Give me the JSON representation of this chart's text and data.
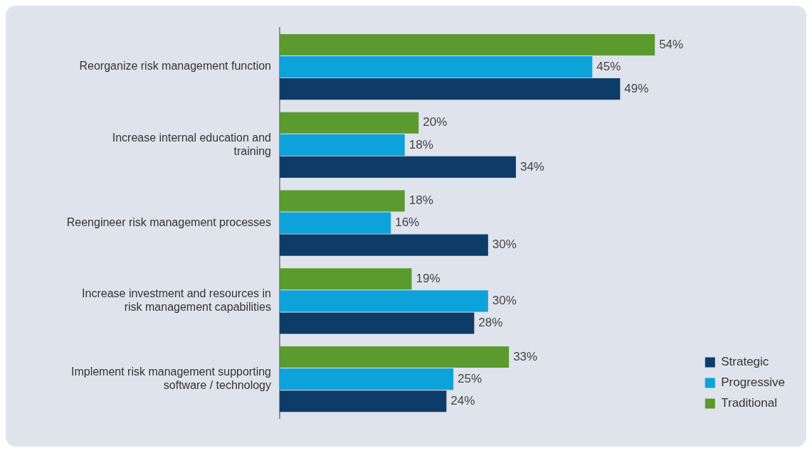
{
  "chart_data": {
    "type": "bar",
    "orientation": "horizontal",
    "categories": [
      "Reorganize risk management function",
      "Increase internal education and training",
      "Reengineer risk management processes",
      "Increase investment and resources in risk management capabilities",
      "Implement risk management supporting software / technology"
    ],
    "series": [
      {
        "name": "Traditional",
        "color": "#5b9a2f",
        "values": [
          54,
          20,
          18,
          19,
          33
        ],
        "value_labels": [
          "54%",
          "20%",
          "18%",
          "19%",
          "33%"
        ]
      },
      {
        "name": "Progressive",
        "color": "#0ea2da",
        "values": [
          45,
          18,
          16,
          30,
          25
        ],
        "value_labels": [
          "45%",
          "18%",
          "16%",
          "30%",
          "25%"
        ]
      },
      {
        "name": "Strategic",
        "color": "#0d3c69",
        "values": [
          49,
          34,
          30,
          28,
          24
        ],
        "value_labels": [
          "49%",
          "34%",
          "30%",
          "28%",
          "24%"
        ]
      }
    ],
    "grid": false,
    "legend": "bottom right"
  }
}
